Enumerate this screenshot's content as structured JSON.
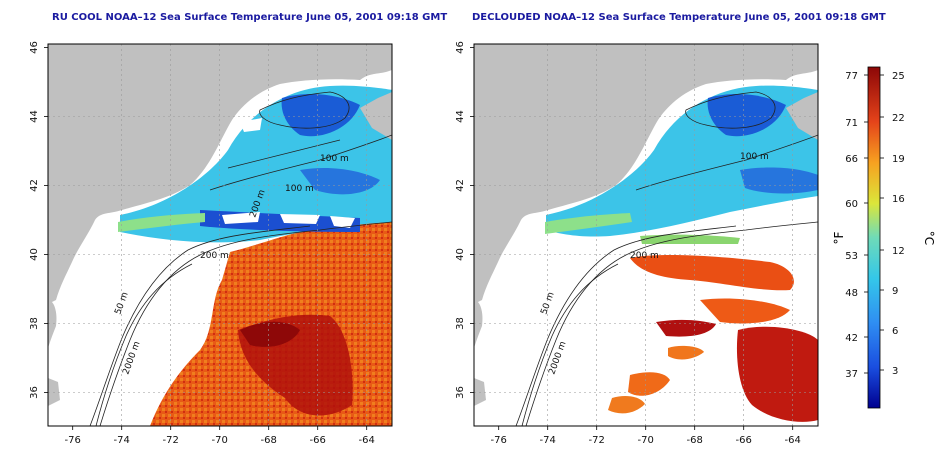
{
  "panels": [
    {
      "id": "left",
      "title": "RU COOL NOAA–12 Sea Surface Temperature June 05, 2001 09:18 GMT"
    },
    {
      "id": "right",
      "title": "DECLOUDED NOAA–12 Sea Surface Temperature June 05, 2001 09:18 GMT"
    }
  ],
  "axes": {
    "lon_ticks": [
      "-76",
      "-74",
      "-72",
      "-70",
      "-68",
      "-66",
      "-64"
    ],
    "lat_ticks": [
      "46",
      "44",
      "42",
      "40",
      "38",
      "36"
    ]
  },
  "contours_left": [
    "100 m",
    "100 m",
    "200 m",
    "50 m",
    "2000 m",
    "200 m"
  ],
  "contours_right": [
    "100 m",
    "200 m",
    "50 m",
    "2000 m"
  ],
  "colorbar": {
    "f_ticks": [
      "77",
      "71",
      "66",
      "60",
      "53",
      "48",
      "42",
      "37"
    ],
    "c_ticks": [
      "25",
      "22",
      "19",
      "16",
      "12",
      "9",
      "6",
      "3"
    ],
    "f_label": "°F",
    "c_label": "°C"
  },
  "colors": {
    "land": "#c0c0c0",
    "warm": "#e63f10",
    "hot": "#b10f0c",
    "cool": "#3ec7ea",
    "cold": "#1a59d9"
  }
}
